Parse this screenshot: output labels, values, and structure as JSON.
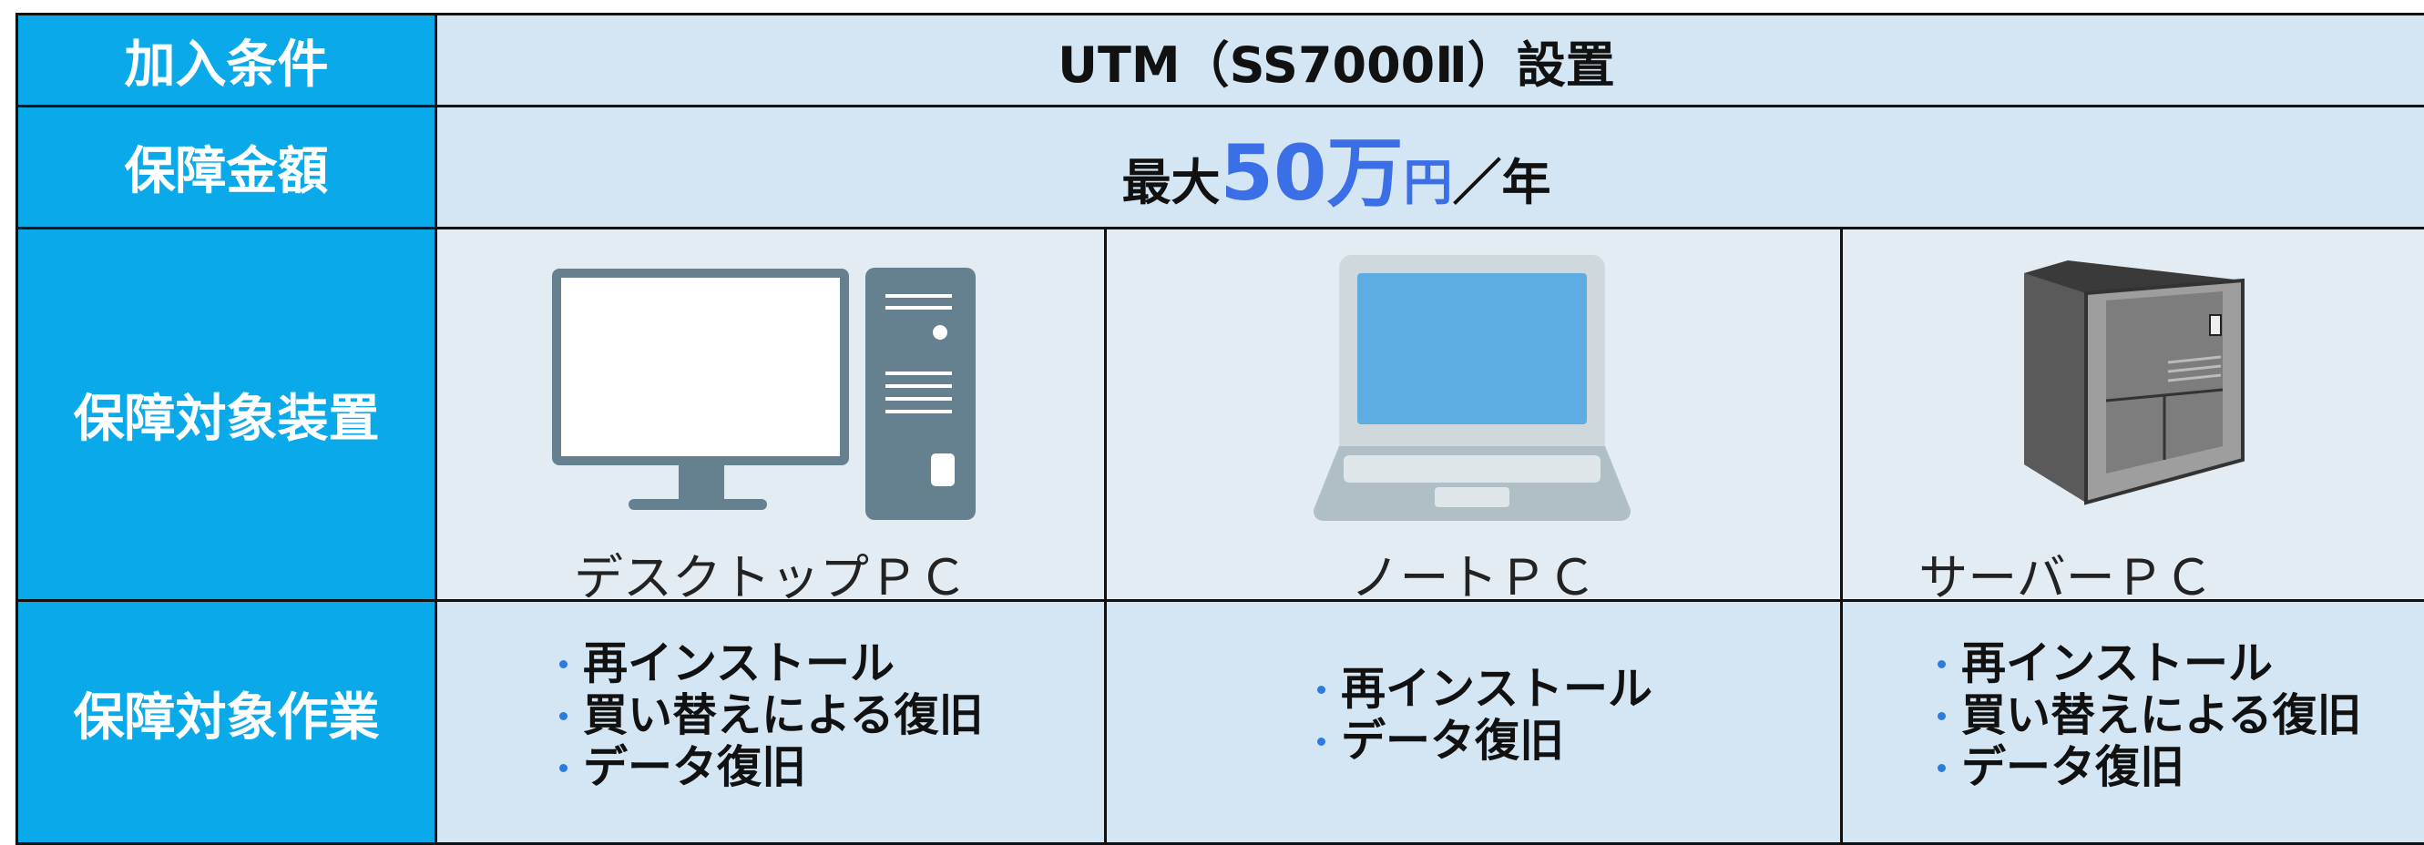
{
  "table": {
    "rows": [
      {
        "header": "加入条件",
        "value": "UTM（SS7000Ⅱ）設置"
      },
      {
        "header": "保障金額",
        "amount": {
          "prefix": "最大",
          "number": "50万",
          "unit": "円",
          "suffix": "／年"
        }
      },
      {
        "header": "保障対象装置",
        "devices": [
          "デスクトップＰＣ",
          "ノートＰＣ",
          "サーバーＰＣ"
        ]
      },
      {
        "header": "保障対象作業",
        "works": [
          [
            "再インストール",
            "買い替えによる復旧",
            "データ復旧"
          ],
          [
            "再インストール",
            "データ復旧"
          ],
          [
            "再インストール",
            "買い替えによる復旧",
            "データ復旧"
          ]
        ]
      }
    ]
  }
}
